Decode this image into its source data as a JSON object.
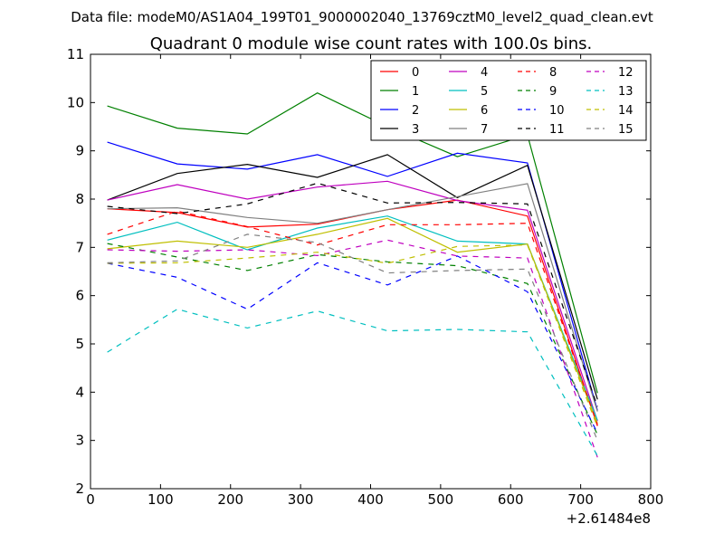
{
  "chart_data": {
    "type": "line",
    "suptitle": "Data file: modeM0/AS1A04_199T01_9000002040_13769cztM0_level2_quad_clean.evt",
    "title": "Quadrant 0 module wise count rates with 100.0s bins.",
    "xlabel": "",
    "ylabel": "",
    "x_offset_label": "+2.61484e8",
    "xlim": [
      0,
      800
    ],
    "ylim": [
      2,
      11
    ],
    "xticks": [
      "0",
      "100",
      "200",
      "300",
      "400",
      "500",
      "600",
      "700",
      "800"
    ],
    "yticks": [
      "2",
      "3",
      "4",
      "5",
      "6",
      "7",
      "8",
      "9",
      "10",
      "11"
    ],
    "grid": false,
    "legend_position": "top-right",
    "x": [
      24,
      124,
      224,
      324,
      424,
      524,
      624,
      724
    ],
    "series": [
      {
        "name": "0",
        "color": "#ff0000",
        "style": "solid",
        "values": [
          7.8,
          7.72,
          7.42,
          7.48,
          7.78,
          7.98,
          7.65,
          3.3
        ]
      },
      {
        "name": "1",
        "color": "#008000",
        "style": "solid",
        "values": [
          9.93,
          9.47,
          9.35,
          10.2,
          9.5,
          8.88,
          9.33,
          3.98
        ]
      },
      {
        "name": "2",
        "color": "#0000ff",
        "style": "solid",
        "values": [
          9.18,
          8.73,
          8.62,
          8.92,
          8.47,
          8.95,
          8.75,
          3.62
        ]
      },
      {
        "name": "3",
        "color": "#000000",
        "style": "solid",
        "values": [
          7.98,
          8.53,
          8.72,
          8.45,
          8.92,
          8.03,
          8.7,
          3.85
        ]
      },
      {
        "name": "4",
        "color": "#bf00bf",
        "style": "solid",
        "values": [
          7.98,
          8.3,
          8.0,
          8.25,
          8.37,
          7.97,
          7.77,
          3.4
        ]
      },
      {
        "name": "5",
        "color": "#00bfbf",
        "style": "solid",
        "values": [
          7.15,
          7.52,
          6.95,
          7.4,
          7.65,
          7.13,
          7.07,
          3.42
        ]
      },
      {
        "name": "6",
        "color": "#bfbf00",
        "style": "solid",
        "values": [
          6.97,
          7.13,
          7.0,
          7.27,
          7.6,
          6.9,
          7.07,
          3.35
        ]
      },
      {
        "name": "7",
        "color": "#808080",
        "style": "solid",
        "values": [
          7.8,
          7.82,
          7.62,
          7.5,
          7.78,
          8.05,
          8.32,
          3.6
        ]
      },
      {
        "name": "8",
        "color": "#ff0000",
        "style": "dashed",
        "values": [
          7.27,
          7.75,
          7.43,
          7.05,
          7.47,
          7.47,
          7.5,
          3.32
        ]
      },
      {
        "name": "9",
        "color": "#008000",
        "style": "dashed",
        "values": [
          7.08,
          6.8,
          6.52,
          6.85,
          6.7,
          6.62,
          6.25,
          3.12
        ]
      },
      {
        "name": "10",
        "color": "#0000ff",
        "style": "dashed",
        "values": [
          6.67,
          6.38,
          5.72,
          6.68,
          6.22,
          6.82,
          6.08,
          3.15
        ]
      },
      {
        "name": "11",
        "color": "#000000",
        "style": "dashed",
        "values": [
          7.85,
          7.7,
          7.9,
          8.33,
          7.92,
          7.93,
          7.9,
          3.7
        ]
      },
      {
        "name": "12",
        "color": "#bf00bf",
        "style": "dashed",
        "values": [
          6.95,
          6.92,
          6.95,
          6.83,
          7.15,
          6.82,
          6.78,
          2.65
        ]
      },
      {
        "name": "13",
        "color": "#00bfbf",
        "style": "dashed",
        "values": [
          4.83,
          5.72,
          5.33,
          5.68,
          5.27,
          5.3,
          5.25,
          2.68
        ]
      },
      {
        "name": "14",
        "color": "#bfbf00",
        "style": "dashed",
        "values": [
          6.67,
          6.68,
          6.78,
          6.9,
          6.67,
          7.02,
          7.05,
          3.28
        ]
      },
      {
        "name": "15",
        "color": "#808080",
        "style": "dashed",
        "values": [
          6.68,
          6.72,
          7.27,
          7.1,
          6.47,
          6.52,
          6.55,
          3.0
        ]
      }
    ]
  }
}
